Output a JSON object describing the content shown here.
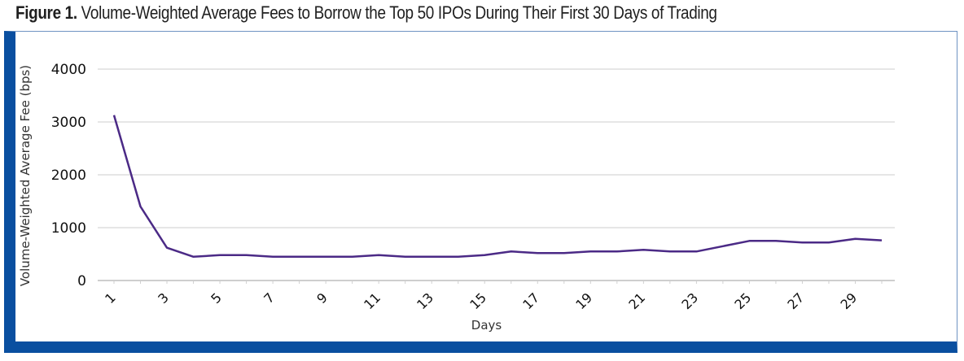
{
  "figure": {
    "label": "Figure 1.",
    "title": "Volume-Weighted Average Fees to Borrow the Top 50 IPOs During Their First 30 Days of Trading"
  },
  "colors": {
    "frame": "#0a4fa0",
    "line": "#4b2a86",
    "grid": "#e6e6e6"
  },
  "chart_data": {
    "type": "line",
    "title": "",
    "xlabel": "Days",
    "ylabel": "Volume-Weighted Average Fee (bps)",
    "ylim": [
      0,
      4000
    ],
    "yticks": [
      0,
      1000,
      2000,
      3000,
      4000
    ],
    "xticks": [
      1,
      3,
      5,
      7,
      9,
      11,
      13,
      15,
      17,
      19,
      21,
      23,
      25,
      27,
      29
    ],
    "grid": true,
    "legend": "none",
    "x": [
      1,
      2,
      3,
      4,
      5,
      6,
      7,
      8,
      9,
      10,
      11,
      12,
      13,
      14,
      15,
      16,
      17,
      18,
      19,
      20,
      21,
      22,
      23,
      24,
      25,
      26,
      27,
      28,
      29,
      30
    ],
    "series": [
      {
        "values": [
          3130,
          1400,
          620,
          450,
          480,
          480,
          450,
          450,
          450,
          450,
          480,
          450,
          450,
          450,
          480,
          550,
          520,
          520,
          550,
          550,
          580,
          550,
          550,
          650,
          750,
          750,
          720,
          720,
          790,
          760
        ]
      }
    ]
  }
}
